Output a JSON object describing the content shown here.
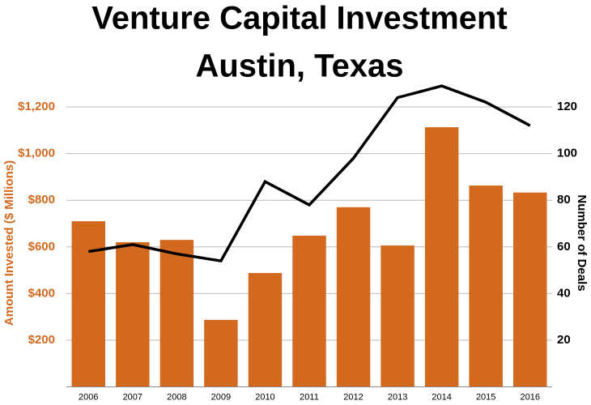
{
  "chart_data": {
    "type": "bar-line",
    "title_lines": [
      "Venture Capital Investment",
      "Austin, Texas"
    ],
    "y_label": "Amount Invested ($ Millions)",
    "y2_label": "Number of Deals",
    "categories": [
      "2006",
      "2007",
      "2008",
      "2009",
      "2010",
      "2011",
      "2012",
      "2013",
      "2014",
      "2015",
      "2016"
    ],
    "series": [
      {
        "type": "bar",
        "color": "#d2691e",
        "axis": "y",
        "values": [
          710,
          620,
          630,
          287,
          488,
          648,
          770,
          606,
          1113,
          863,
          833
        ]
      },
      {
        "type": "line",
        "color": "#000000",
        "axis": "y2",
        "values": [
          58,
          61,
          57,
          54,
          88,
          78,
          98,
          124,
          129,
          122,
          112
        ]
      }
    ],
    "ylim": [
      0,
      1300
    ],
    "yticks": [
      {
        "value": 200,
        "label": "$200"
      },
      {
        "value": 400,
        "label": "$400"
      },
      {
        "value": 600,
        "label": "$600"
      },
      {
        "value": 800,
        "label": "$800"
      },
      {
        "value": 1000,
        "label": "$1,000"
      },
      {
        "value": 1200,
        "label": "$1,200"
      }
    ],
    "y2lim": [
      0,
      130
    ],
    "y2ticks": [
      20,
      40,
      60,
      80,
      100,
      120
    ],
    "grid": true
  }
}
